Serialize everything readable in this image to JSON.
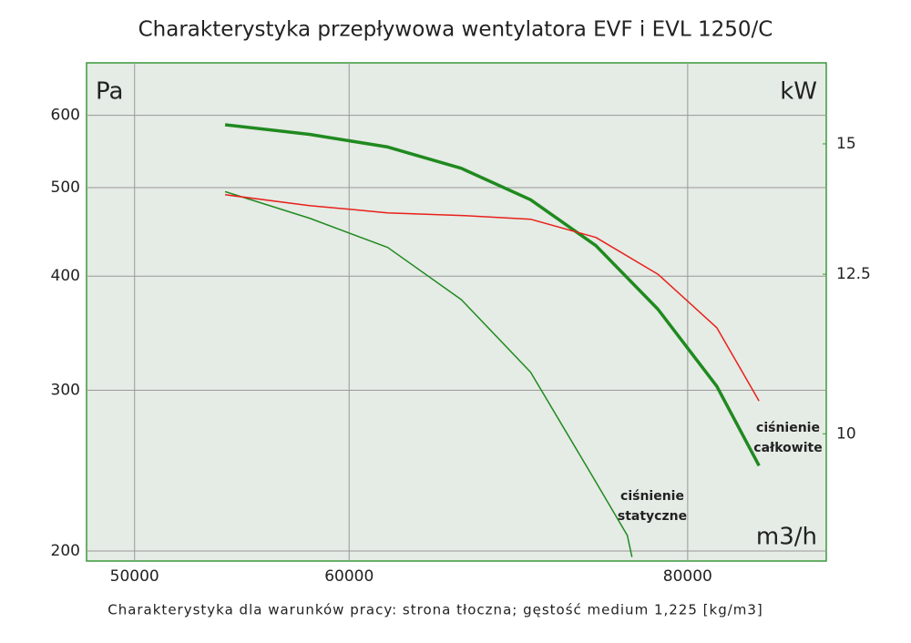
{
  "chart_data": {
    "type": "line",
    "title": "Charakterystyka przepływowa wentylatora EVF i EVL 1250/C",
    "footnote": "Charakterystyka dla warunków pracy: strona tłoczna; gęstość medium 1,225 [kg/m3]",
    "y_label": "Pa",
    "y2_label": "kW",
    "x_label": "m3/h",
    "log_x": true,
    "log_y": true,
    "log_y2": true,
    "grid": true,
    "xlim": [
      48000,
      90000
    ],
    "xticks": [
      50000,
      60000,
      80000
    ],
    "ylim": [
      195,
      685
    ],
    "yticks": [
      200,
      300,
      400,
      500,
      600
    ],
    "y2lim": [
      8.37,
      16.8
    ],
    "y2ticks": [
      10,
      12.5,
      15
    ],
    "series": [
      {
        "color": "#1f8a1f",
        "width": 3.5,
        "x": [
          54000,
          58000,
          62000,
          66000,
          70000,
          74000,
          78000,
          82000,
          85000
        ],
        "values": [
          586,
          572,
          554,
          525,
          485,
          432,
          368,
          303,
          248
        ]
      },
      {
        "color": "#1f8a1f",
        "width": 1.5,
        "x": [
          54000,
          58000,
          62000,
          66000,
          70000,
          74000,
          76000,
          76300
        ],
        "values": [
          495,
          463,
          430,
          377,
          314,
          238,
          208,
          197
        ]
      },
      {
        "color": "#e8201a",
        "width": 1.5,
        "axis": "y2",
        "x": [
          54000,
          58000,
          62000,
          66000,
          70000,
          74000,
          78000,
          82000,
          85000
        ],
        "values": [
          13.97,
          13.76,
          13.62,
          13.57,
          13.5,
          13.16,
          12.5,
          11.6,
          10.47
        ]
      }
    ],
    "annotations": [
      {
        "lines": [
          "ciśnienie",
          "całkowite"
        ]
      },
      {
        "lines": [
          "ciśnienie",
          "statyczne"
        ]
      }
    ]
  }
}
